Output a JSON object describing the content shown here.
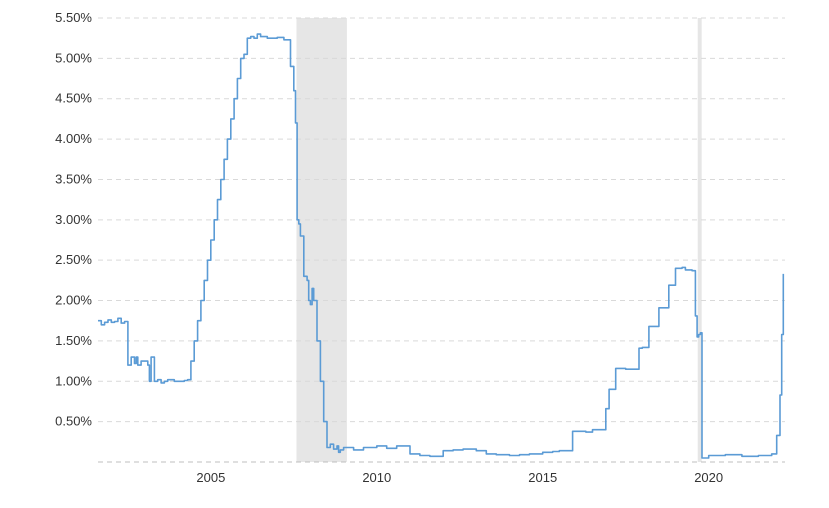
{
  "chart_data": {
    "type": "line",
    "title": "",
    "xlabel": "",
    "ylabel": "",
    "xlim": [
      2001.6,
      2022.3
    ],
    "ylim": [
      0.0,
      5.5
    ],
    "grid": true,
    "line_color": "#5b9bd5",
    "recession_color": "#e6e6e6",
    "y_ticks": [
      {
        "value": 0.5,
        "label": "0.50%"
      },
      {
        "value": 1.0,
        "label": "1.00%"
      },
      {
        "value": 1.5,
        "label": "1.50%"
      },
      {
        "value": 2.0,
        "label": "2.00%"
      },
      {
        "value": 2.5,
        "label": "2.50%"
      },
      {
        "value": 3.0,
        "label": "3.00%"
      },
      {
        "value": 3.5,
        "label": "3.50%"
      },
      {
        "value": 4.0,
        "label": "4.00%"
      },
      {
        "value": 4.5,
        "label": "4.50%"
      },
      {
        "value": 5.0,
        "label": "5.00%"
      },
      {
        "value": 5.5,
        "label": "5.50%"
      }
    ],
    "x_ticks": [
      {
        "value": 2005,
        "label": "2005"
      },
      {
        "value": 2010,
        "label": "2010"
      },
      {
        "value": 2015,
        "label": "2015"
      },
      {
        "value": 2020,
        "label": "2020"
      }
    ],
    "recessions": [
      {
        "start": 2007.58,
        "end": 2009.1
      },
      {
        "start": 2019.67,
        "end": 2019.79
      }
    ],
    "series": [
      {
        "x": [
          2001.6,
          2001.7,
          2001.8,
          2001.9,
          2002.0,
          2002.1,
          2002.2,
          2002.3,
          2002.4,
          2002.5,
          2002.6,
          2002.7,
          2002.75,
          2002.8,
          2002.9,
          2003.0,
          2003.1,
          2003.15,
          2003.2,
          2003.3,
          2003.4,
          2003.5,
          2003.6,
          2003.7,
          2003.9,
          2004.0,
          2004.2,
          2004.3,
          2004.4,
          2004.5,
          2004.6,
          2004.7,
          2004.8,
          2004.9,
          2005.0,
          2005.1,
          2005.2,
          2005.3,
          2005.4,
          2005.5,
          2005.6,
          2005.7,
          2005.8,
          2005.9,
          2006.0,
          2006.1,
          2006.2,
          2006.3,
          2006.4,
          2006.5,
          2006.7,
          2007.0,
          2007.2,
          2007.4,
          2007.5,
          2007.55,
          2007.6,
          2007.65,
          2007.7,
          2007.8,
          2007.9,
          2007.95,
          2008.0,
          2008.05,
          2008.1,
          2008.2,
          2008.3,
          2008.4,
          2008.5,
          2008.6,
          2008.7,
          2008.8,
          2008.85,
          2008.9,
          2009.0,
          2009.3,
          2009.6,
          2010.0,
          2010.3,
          2010.6,
          2011.0,
          2011.3,
          2011.6,
          2012.0,
          2012.3,
          2012.6,
          2013.0,
          2013.3,
          2013.6,
          2014.0,
          2014.3,
          2014.6,
          2015.0,
          2015.3,
          2015.5,
          2015.9,
          2016.0,
          2016.3,
          2016.5,
          2016.9,
          2017.0,
          2017.2,
          2017.5,
          2017.9,
          2018.0,
          2018.2,
          2018.5,
          2018.8,
          2019.0,
          2019.2,
          2019.3,
          2019.5,
          2019.6,
          2019.65,
          2019.7,
          2019.75,
          2019.8,
          2020.0,
          2020.5,
          2021.0,
          2021.5,
          2021.9,
          2022.0,
          2022.05,
          2022.1,
          2022.15,
          2022.2,
          2022.25
        ],
        "y": [
          1.75,
          1.7,
          1.73,
          1.76,
          1.73,
          1.74,
          1.78,
          1.72,
          1.74,
          1.2,
          1.3,
          1.22,
          1.3,
          1.2,
          1.25,
          1.25,
          1.2,
          1.0,
          1.3,
          1.0,
          1.02,
          0.98,
          1.0,
          1.02,
          1.0,
          1.0,
          1.01,
          1.02,
          1.25,
          1.5,
          1.75,
          2.0,
          2.25,
          2.5,
          2.75,
          3.0,
          3.25,
          3.5,
          3.75,
          4.0,
          4.25,
          4.5,
          4.75,
          5.0,
          5.05,
          5.25,
          5.27,
          5.25,
          5.3,
          5.27,
          5.25,
          5.26,
          5.23,
          4.9,
          4.6,
          4.2,
          3.0,
          2.95,
          2.8,
          2.3,
          2.25,
          2.0,
          1.95,
          2.15,
          2.0,
          1.5,
          1.0,
          0.5,
          0.18,
          0.22,
          0.16,
          0.2,
          0.12,
          0.15,
          0.18,
          0.15,
          0.18,
          0.2,
          0.17,
          0.2,
          0.1,
          0.08,
          0.07,
          0.14,
          0.15,
          0.16,
          0.14,
          0.1,
          0.09,
          0.08,
          0.09,
          0.1,
          0.12,
          0.13,
          0.14,
          0.38,
          0.38,
          0.37,
          0.4,
          0.66,
          0.9,
          1.16,
          1.15,
          1.41,
          1.42,
          1.68,
          1.91,
          2.19,
          2.4,
          2.41,
          2.38,
          2.37,
          1.81,
          1.55,
          1.58,
          1.6,
          0.05,
          0.08,
          0.09,
          0.07,
          0.08,
          0.1,
          0.1,
          0.33,
          0.33,
          0.83,
          1.58,
          2.33
        ]
      }
    ]
  }
}
